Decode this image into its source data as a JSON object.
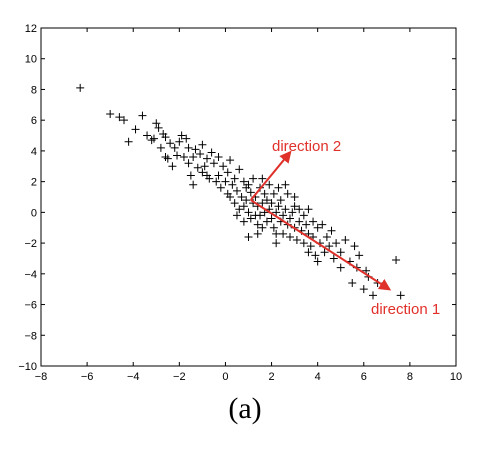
{
  "chart_data": {
    "type": "scatter",
    "title": "",
    "xlabel": "",
    "ylabel": "",
    "xlim": [
      -8,
      10
    ],
    "ylim": [
      -10,
      12
    ],
    "xticks": [
      -8,
      -6,
      -4,
      -2,
      0,
      2,
      4,
      6,
      8,
      10
    ],
    "yticks": [
      -10,
      -8,
      -6,
      -4,
      -2,
      0,
      2,
      4,
      6,
      8,
      10,
      12
    ],
    "grid": false,
    "marker": "+",
    "marker_color": "#000000",
    "points": [
      [
        -6.3,
        8.1
      ],
      [
        -5.0,
        6.4
      ],
      [
        -4.6,
        6.2
      ],
      [
        -4.4,
        6.0
      ],
      [
        -4.2,
        4.6
      ],
      [
        -3.9,
        5.4
      ],
      [
        -3.6,
        6.3
      ],
      [
        -3.4,
        5.0
      ],
      [
        -3.2,
        4.7
      ],
      [
        -3.1,
        4.8
      ],
      [
        -3.0,
        5.8
      ],
      [
        -2.9,
        5.5
      ],
      [
        -2.8,
        4.2
      ],
      [
        -2.7,
        5.1
      ],
      [
        -2.6,
        3.6
      ],
      [
        -2.6,
        4.9
      ],
      [
        -2.5,
        3.5
      ],
      [
        -2.4,
        4.5
      ],
      [
        -2.3,
        3.0
      ],
      [
        -2.2,
        4.2
      ],
      [
        -2.1,
        3.7
      ],
      [
        -2.0,
        4.6
      ],
      [
        -1.9,
        5.0
      ],
      [
        -1.8,
        3.6
      ],
      [
        -1.7,
        4.8
      ],
      [
        -1.6,
        3.2
      ],
      [
        -1.6,
        4.2
      ],
      [
        -1.5,
        2.4
      ],
      [
        -1.4,
        3.6
      ],
      [
        -1.3,
        4.1
      ],
      [
        -1.2,
        2.9
      ],
      [
        -1.1,
        3.8
      ],
      [
        -1.0,
        4.4
      ],
      [
        -1.0,
        2.6
      ],
      [
        -0.9,
        3.0
      ],
      [
        -0.8,
        3.5
      ],
      [
        -0.7,
        2.2
      ],
      [
        -0.6,
        3.9
      ],
      [
        -0.5,
        3.2
      ],
      [
        -0.4,
        2.0
      ],
      [
        -0.3,
        3.6
      ],
      [
        -0.3,
        2.4
      ],
      [
        -0.2,
        1.6
      ],
      [
        -0.1,
        3.0
      ],
      [
        0.0,
        2.0
      ],
      [
        0.1,
        2.6
      ],
      [
        0.1,
        1.2
      ],
      [
        0.2,
        3.4
      ],
      [
        0.3,
        1.8
      ],
      [
        0.4,
        2.2
      ],
      [
        0.4,
        0.6
      ],
      [
        0.5,
        1.4
      ],
      [
        0.6,
        2.8
      ],
      [
        0.6,
        0.2
      ],
      [
        0.7,
        1.0
      ],
      [
        0.8,
        2.0
      ],
      [
        0.8,
        -0.6
      ],
      [
        0.9,
        0.8
      ],
      [
        0.9,
        1.6
      ],
      [
        1.0,
        0.0
      ],
      [
        1.0,
        -1.6
      ],
      [
        1.1,
        1.3
      ],
      [
        1.1,
        -0.4
      ],
      [
        1.2,
        0.6
      ],
      [
        1.2,
        2.2
      ],
      [
        1.3,
        -0.2
      ],
      [
        1.3,
        1.0
      ],
      [
        1.4,
        -0.8
      ],
      [
        1.4,
        0.4
      ],
      [
        1.5,
        1.6
      ],
      [
        1.5,
        -0.2
      ],
      [
        1.6,
        0.6
      ],
      [
        1.6,
        -1.0
      ],
      [
        1.7,
        1.2
      ],
      [
        1.7,
        0.0
      ],
      [
        1.8,
        -0.6
      ],
      [
        1.8,
        0.8
      ],
      [
        1.9,
        0.2
      ],
      [
        1.9,
        1.8
      ],
      [
        2.0,
        -0.4
      ],
      [
        2.0,
        0.6
      ],
      [
        2.1,
        -1.0
      ],
      [
        2.1,
        1.2
      ],
      [
        2.2,
        0.0
      ],
      [
        2.2,
        -1.4
      ],
      [
        2.3,
        0.4
      ],
      [
        2.3,
        1.6
      ],
      [
        2.4,
        -0.6
      ],
      [
        2.4,
        0.8
      ],
      [
        2.5,
        -0.2
      ],
      [
        2.5,
        -1.4
      ],
      [
        2.6,
        0.2
      ],
      [
        2.7,
        -0.8
      ],
      [
        2.7,
        1.2
      ],
      [
        2.8,
        -0.4
      ],
      [
        2.8,
        -1.6
      ],
      [
        2.9,
        0.0
      ],
      [
        3.0,
        -1.0
      ],
      [
        3.0,
        0.4
      ],
      [
        3.1,
        -1.8
      ],
      [
        3.2,
        -0.6
      ],
      [
        3.2,
        0.2
      ],
      [
        3.3,
        -1.2
      ],
      [
        3.4,
        -0.2
      ],
      [
        3.4,
        -2.0
      ],
      [
        3.5,
        -0.8
      ],
      [
        3.6,
        -1.4
      ],
      [
        3.6,
        0.2
      ],
      [
        3.7,
        -2.2
      ],
      [
        3.8,
        -0.6
      ],
      [
        3.8,
        -1.6
      ],
      [
        3.9,
        -2.8
      ],
      [
        4.0,
        -1.0
      ],
      [
        4.1,
        -2.0
      ],
      [
        4.2,
        -0.8
      ],
      [
        4.3,
        -2.6
      ],
      [
        4.4,
        -1.6
      ],
      [
        4.5,
        -2.2
      ],
      [
        4.6,
        -1.2
      ],
      [
        4.7,
        -3.0
      ],
      [
        4.8,
        -2.0
      ],
      [
        5.0,
        -2.6
      ],
      [
        5.2,
        -1.8
      ],
      [
        5.4,
        -3.2
      ],
      [
        5.5,
        -4.6
      ],
      [
        5.6,
        -2.2
      ],
      [
        5.7,
        -3.6
      ],
      [
        5.8,
        -2.8
      ],
      [
        6.0,
        -5.0
      ],
      [
        6.1,
        -3.8
      ],
      [
        6.2,
        -4.2
      ],
      [
        6.4,
        -5.4
      ],
      [
        6.6,
        -4.6
      ],
      [
        7.4,
        -3.1
      ],
      [
        7.6,
        -5.4
      ],
      [
        0.2,
        1.0
      ],
      [
        0.5,
        -0.2
      ],
      [
        1.0,
        1.8
      ],
      [
        1.6,
        2.2
      ],
      [
        2.6,
        1.8
      ],
      [
        -0.8,
        2.4
      ],
      [
        -1.4,
        1.8
      ],
      [
        3.0,
        1.0
      ],
      [
        2.2,
        -2.0
      ],
      [
        4.0,
        -3.2
      ],
      [
        3.6,
        -2.6
      ],
      [
        5.0,
        -3.6
      ],
      [
        1.4,
        -1.4
      ],
      [
        0.8,
        0.4
      ]
    ],
    "annotations": [
      {
        "text": "direction 1",
        "from": [
          1.1,
          0.8
        ],
        "to": [
          7.1,
          -5.0
        ],
        "color": "#e0302a"
      },
      {
        "text": "direction 2",
        "from": [
          1.1,
          0.8
        ],
        "to": [
          2.8,
          3.9
        ],
        "color": "#e0302a"
      }
    ],
    "caption": "(a)"
  }
}
